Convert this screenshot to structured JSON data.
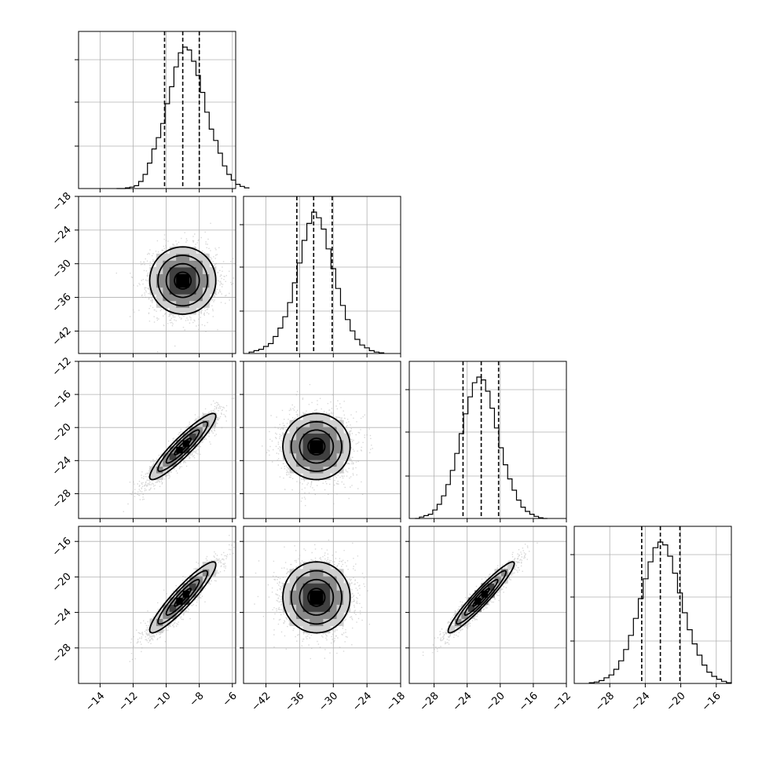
{
  "chart_data": {
    "type": "corner",
    "n_params": 4,
    "params": [
      {
        "index": 0,
        "mean": -9.0,
        "std": 1.0,
        "range": [
          -15.3,
          -5.8
        ],
        "ticks": [
          -14,
          -12,
          -10,
          -8,
          -6
        ],
        "tick_labels": [
          "−14",
          "−12",
          "−10",
          "−8",
          "−6"
        ],
        "quantiles": [
          -10.1,
          -9.0,
          -8.0
        ]
      },
      {
        "index": 1,
        "mean": -33.0,
        "std": 3.0,
        "range": [
          -46.0,
          -18.0
        ],
        "ticks": [
          -42,
          -36,
          -30,
          -24,
          -18
        ],
        "tick_labels": [
          "−42",
          "−36",
          "−30",
          "−24",
          "−18"
        ],
        "quantiles": [
          -36.5,
          -33.5,
          -30.2
        ]
      },
      {
        "index": 2,
        "mean": -22.3,
        "std": 2.0,
        "range": [
          -31.0,
          -12.0
        ],
        "ticks": [
          -28,
          -24,
          -20,
          -16,
          -12
        ],
        "tick_labels": [
          "−28",
          "−24",
          "−20",
          "−16",
          "−12"
        ],
        "quantiles": [
          -24.5,
          -22.3,
          -20.2
        ]
      },
      {
        "index": 3,
        "mean": -22.3,
        "std": 2.0,
        "range": [
          -32.0,
          -14.3
        ],
        "ticks": [
          -28,
          -24,
          -20,
          -16
        ],
        "tick_labels": [
          "−28",
          "−24",
          "−20",
          "−16"
        ],
        "quantiles": [
          -24.4,
          -22.3,
          -20.1
        ]
      }
    ],
    "correlations": [
      [
        1,
        0,
        0.92,
        0.92
      ],
      [
        0,
        1,
        0,
        0
      ],
      [
        0.92,
        0,
        1,
        0.95
      ],
      [
        0.92,
        0,
        0.95,
        1
      ]
    ],
    "histograms": [
      [
        0,
        0,
        0.005,
        0.01,
        0.02,
        0.05,
        0.1,
        0.18,
        0.28,
        0.36,
        0.46,
        0.6,
        0.72,
        0.86,
        0.96,
        1.0,
        0.98,
        0.9,
        0.8,
        0.68,
        0.54,
        0.42,
        0.34,
        0.25,
        0.16,
        0.1,
        0.06,
        0.03,
        0.015,
        0.005
      ],
      [
        0.01,
        0.02,
        0.03,
        0.05,
        0.07,
        0.12,
        0.18,
        0.26,
        0.36,
        0.5,
        0.64,
        0.8,
        0.92,
        1.0,
        0.96,
        0.88,
        0.74,
        0.6,
        0.46,
        0.34,
        0.24,
        0.16,
        0.1,
        0.06,
        0.04,
        0.02,
        0.01,
        0.005
      ],
      [
        0,
        0.01,
        0.02,
        0.03,
        0.06,
        0.1,
        0.16,
        0.24,
        0.34,
        0.46,
        0.6,
        0.74,
        0.86,
        0.96,
        1.0,
        0.98,
        0.9,
        0.78,
        0.64,
        0.5,
        0.38,
        0.28,
        0.2,
        0.13,
        0.08,
        0.05,
        0.03,
        0.015,
        0.005,
        0
      ],
      [
        0.005,
        0.01,
        0.02,
        0.04,
        0.06,
        0.1,
        0.16,
        0.24,
        0.34,
        0.46,
        0.6,
        0.74,
        0.86,
        0.96,
        1.0,
        0.98,
        0.9,
        0.78,
        0.64,
        0.5,
        0.38,
        0.28,
        0.2,
        0.13,
        0.08,
        0.05,
        0.03,
        0.015,
        0.005
      ]
    ],
    "contour_levels_sigma": [
      0.5,
      1.0,
      1.5,
      2.0
    ],
    "scatter_points_per_panel": 2500,
    "grid": true
  }
}
